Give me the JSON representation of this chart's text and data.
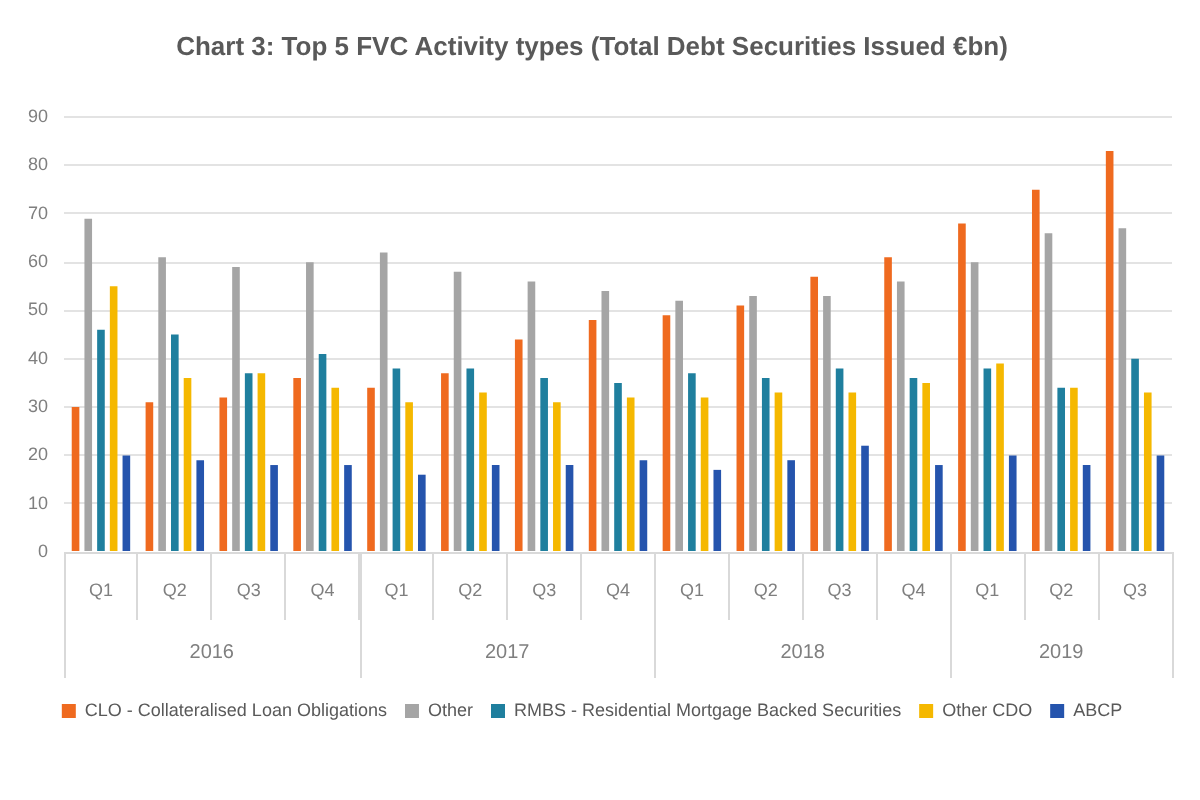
{
  "chart_data": {
    "type": "bar",
    "title": "Chart 3: Top 5 FVC Activity types (Total Debt Securities Issued €bn)",
    "categories": [
      "Q1",
      "Q2",
      "Q3",
      "Q4",
      "Q1",
      "Q2",
      "Q3",
      "Q4",
      "Q1",
      "Q2",
      "Q3",
      "Q4",
      "Q1",
      "Q2",
      "Q3"
    ],
    "series": [
      {
        "name": "CLO - Collateralised Loan Obligations",
        "color": "#ef6a1f",
        "values": [
          30,
          31,
          32,
          36,
          34,
          37,
          44,
          48,
          49,
          51,
          57,
          61,
          68,
          75,
          83
        ]
      },
      {
        "name": "Other",
        "color": "#a5a5a5",
        "values": [
          69,
          61,
          59,
          60,
          62,
          58,
          56,
          54,
          52,
          53,
          53,
          56,
          60,
          66,
          67
        ]
      },
      {
        "name": "RMBS - Residential Mortgage Backed Securities",
        "color": "#1f7f9e",
        "values": [
          46,
          45,
          37,
          41,
          38,
          38,
          36,
          35,
          37,
          36,
          38,
          36,
          38,
          34,
          40
        ]
      },
      {
        "name": "Other CDO",
        "color": "#f5b800",
        "values": [
          55,
          36,
          37,
          34,
          31,
          33,
          31,
          32,
          32,
          33,
          33,
          35,
          39,
          34,
          33
        ]
      },
      {
        "name": "ABCP",
        "color": "#2554ad",
        "values": [
          20,
          19,
          18,
          18,
          16,
          18,
          18,
          19,
          17,
          19,
          22,
          18,
          20,
          18,
          20
        ]
      }
    ],
    "ylim": [
      0,
      90
    ],
    "yticks": [
      0,
      10,
      20,
      30,
      40,
      50,
      60,
      70,
      80,
      90
    ],
    "grid": "y",
    "legend": "bottom",
    "annotations": [
      "2016",
      "2017",
      "2018",
      "2019"
    ]
  }
}
